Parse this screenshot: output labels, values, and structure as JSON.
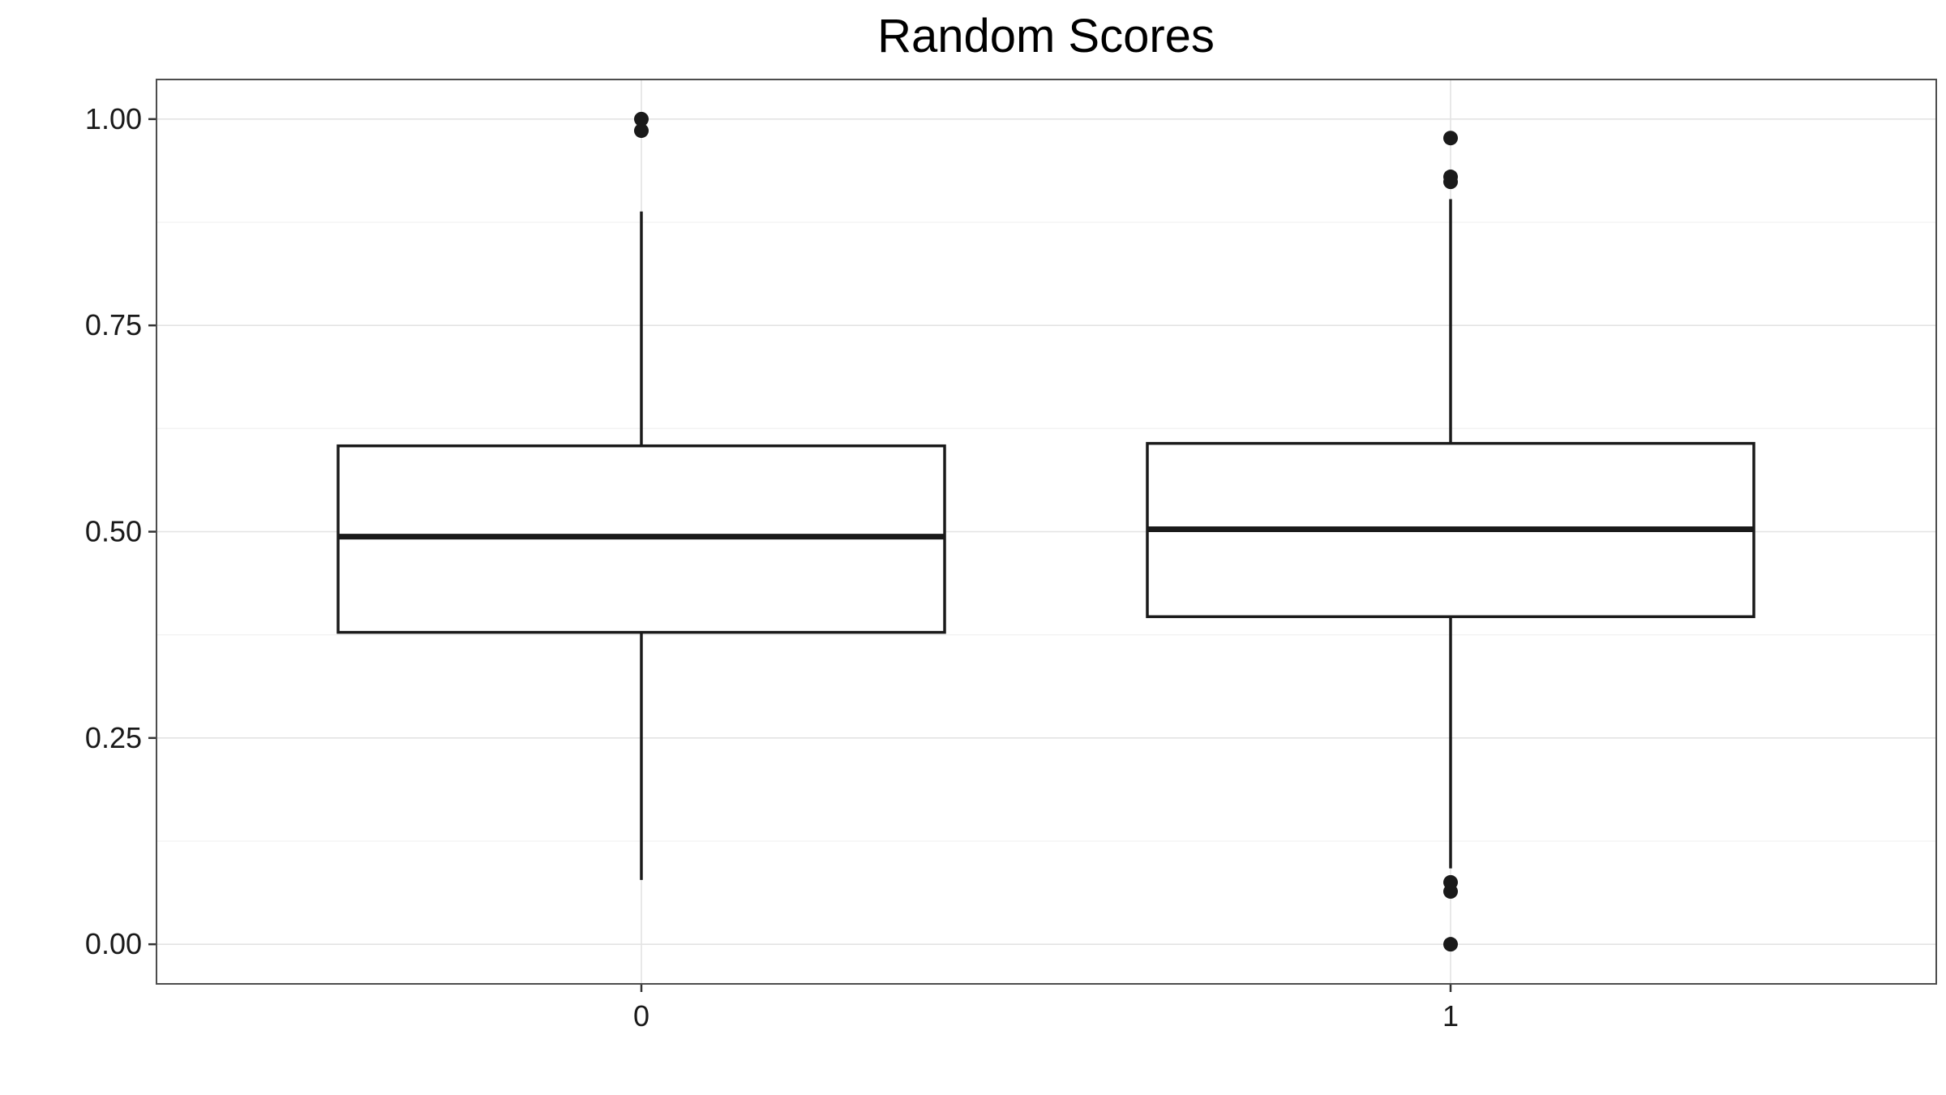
{
  "chart_data": {
    "type": "boxplot",
    "title": "Random Scores",
    "xlabel": "",
    "ylabel": "",
    "categories": [
      "0",
      "1"
    ],
    "ylim": [
      -0.048,
      1.048
    ],
    "y_ticks": [
      0.0,
      0.25,
      0.5,
      0.75,
      1.0
    ],
    "y_tick_labels": [
      "0.00",
      "0.25",
      "0.50",
      "0.75",
      "1.00"
    ],
    "grid": true,
    "boxes": [
      {
        "category": "0",
        "whisker_low": 0.078,
        "q1": 0.378,
        "median": 0.494,
        "q3": 0.604,
        "whisker_high": 0.888,
        "outliers": [
          0.986,
          1.0
        ]
      },
      {
        "category": "1",
        "whisker_low": 0.092,
        "q1": 0.397,
        "median": 0.503,
        "q3": 0.607,
        "whisker_high": 0.903,
        "outliers": [
          0.0,
          0.064,
          0.075,
          0.924,
          0.93,
          0.977
        ]
      }
    ]
  }
}
